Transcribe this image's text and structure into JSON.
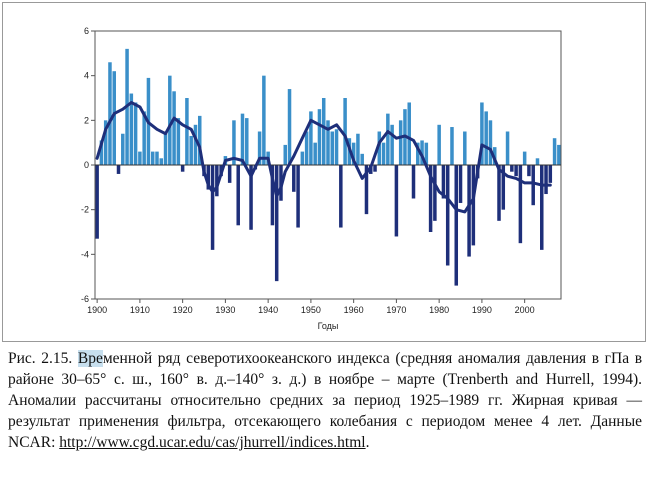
{
  "chart_data": {
    "type": "bar",
    "title": "",
    "xlabel": "Годы",
    "ylabel": "",
    "xlim": [
      1899.5,
      2008.5
    ],
    "ylim": [
      -6,
      6
    ],
    "x_ticks": [
      1900,
      1910,
      1920,
      1930,
      1940,
      1950,
      1960,
      1970,
      1980,
      1990,
      2000
    ],
    "y_ticks": [
      -6,
      -4,
      -2,
      0,
      2,
      4,
      6
    ],
    "bar_color": "#3a8fc9",
    "line_color": "#1e2f7a",
    "years": [
      1900,
      1901,
      1902,
      1903,
      1904,
      1905,
      1906,
      1907,
      1908,
      1909,
      1910,
      1911,
      1912,
      1913,
      1914,
      1915,
      1916,
      1917,
      1918,
      1919,
      1920,
      1921,
      1922,
      1923,
      1924,
      1925,
      1926,
      1927,
      1928,
      1929,
      1930,
      1931,
      1932,
      1933,
      1934,
      1935,
      1936,
      1937,
      1938,
      1939,
      1940,
      1941,
      1942,
      1943,
      1944,
      1945,
      1946,
      1947,
      1948,
      1949,
      1950,
      1951,
      1952,
      1953,
      1954,
      1955,
      1956,
      1957,
      1958,
      1959,
      1960,
      1961,
      1962,
      1963,
      1964,
      1965,
      1966,
      1967,
      1968,
      1969,
      1970,
      1971,
      1972,
      1973,
      1974,
      1975,
      1976,
      1977,
      1978,
      1979,
      1980,
      1981,
      1982,
      1983,
      1984,
      1985,
      1986,
      1987,
      1988,
      1989,
      1990,
      1991,
      1992,
      1993,
      1994,
      1995,
      1996,
      1997,
      1998,
      1999,
      2000,
      2001,
      2002,
      2003,
      2004,
      2005,
      2006,
      2007,
      2008
    ],
    "values": [
      -3.3,
      1.1,
      2.0,
      4.6,
      4.2,
      -0.4,
      1.4,
      5.2,
      3.2,
      2.8,
      0.6,
      2.4,
      3.9,
      0.6,
      0.6,
      0.3,
      1.5,
      4.0,
      3.3,
      2.1,
      -0.3,
      3.0,
      1.3,
      1.8,
      2.2,
      -0.5,
      -1.1,
      -3.8,
      -1.4,
      -0.5,
      0.4,
      -0.8,
      2.0,
      -2.7,
      2.3,
      2.1,
      -2.9,
      -0.2,
      1.5,
      4.0,
      0.6,
      -2.7,
      -5.2,
      -1.6,
      0.9,
      3.4,
      -1.2,
      -2.8,
      0.6,
      1.5,
      2.4,
      1.0,
      2.5,
      3.0,
      2.0,
      1.5,
      1.6,
      -2.8,
      3.0,
      1.2,
      1.0,
      1.4,
      0.5,
      -2.2,
      -0.4,
      -0.3,
      1.5,
      1.0,
      2.3,
      1.8,
      -3.2,
      2.0,
      2.5,
      2.8,
      -1.5,
      1.0,
      1.1,
      1.0,
      -3.0,
      -2.5,
      1.8,
      -1.5,
      -4.5,
      1.7,
      -5.4,
      -1.7,
      1.5,
      -4.1,
      -3.6,
      -0.6,
      2.8,
      2.4,
      2.0,
      0.8,
      -2.5,
      -2.0,
      1.5,
      -0.3,
      -0.5,
      -3.5,
      0.6,
      -0.5,
      -1.8,
      0.3,
      -3.8,
      -1.3,
      -0.8,
      1.2,
      0.9
    ],
    "smoothed": {
      "years": [
        1900,
        1902,
        1904,
        1906,
        1908,
        1910,
        1912,
        1914,
        1916,
        1918,
        1920,
        1922,
        1924,
        1925,
        1926,
        1927,
        1928,
        1929,
        1930,
        1932,
        1934,
        1936,
        1938,
        1940,
        1941,
        1942,
        1943,
        1944,
        1946,
        1948,
        1950,
        1952,
        1954,
        1956,
        1958,
        1960,
        1962,
        1964,
        1966,
        1968,
        1970,
        1972,
        1974,
        1976,
        1978,
        1980,
        1982,
        1984,
        1986,
        1988,
        1990,
        1992,
        1994,
        1996,
        1998,
        2000,
        2002,
        2004,
        2006
      ],
      "values": [
        0.3,
        1.6,
        2.3,
        2.5,
        2.8,
        2.6,
        1.9,
        1.6,
        1.4,
        2.1,
        1.8,
        1.6,
        0.8,
        -0.3,
        -0.9,
        -1.2,
        -1.0,
        -0.4,
        0.2,
        0.3,
        0.2,
        -0.5,
        0.3,
        0.3,
        -0.6,
        -1.4,
        -1.0,
        -0.3,
        0.4,
        1.2,
        2.0,
        1.8,
        1.6,
        1.8,
        1.3,
        0.2,
        -0.6,
        -0.1,
        1.0,
        1.5,
        1.2,
        1.3,
        1.1,
        0.4,
        -0.5,
        -1.2,
        -1.5,
        -2.0,
        -2.1,
        -1.5,
        0.9,
        0.7,
        -0.2,
        -0.5,
        -0.6,
        -0.8,
        -0.8,
        -0.9,
        -0.9
      ]
    }
  },
  "caption": {
    "label": "Рис. 2.15.",
    "highlight": "Вре",
    "text": "менной ряд северотихоокеанского индекса (средняя аномалия давления в гПа в районе 30–65° с. ш., 160° в. д.–140° з. д.) в ноябре – марте (Trenberth and Hurrell, 1994). Аномалии рассчитаны относительно средних за период 1925–1989 гг. Жирная кривая — результат применения фильтра, отсекающего колебания с периодом менее 4 лет. Данные NCAR: ",
    "link": "http://www.cgd.ucar.edu/cas/jhurrell/indices.html",
    "end": "."
  }
}
